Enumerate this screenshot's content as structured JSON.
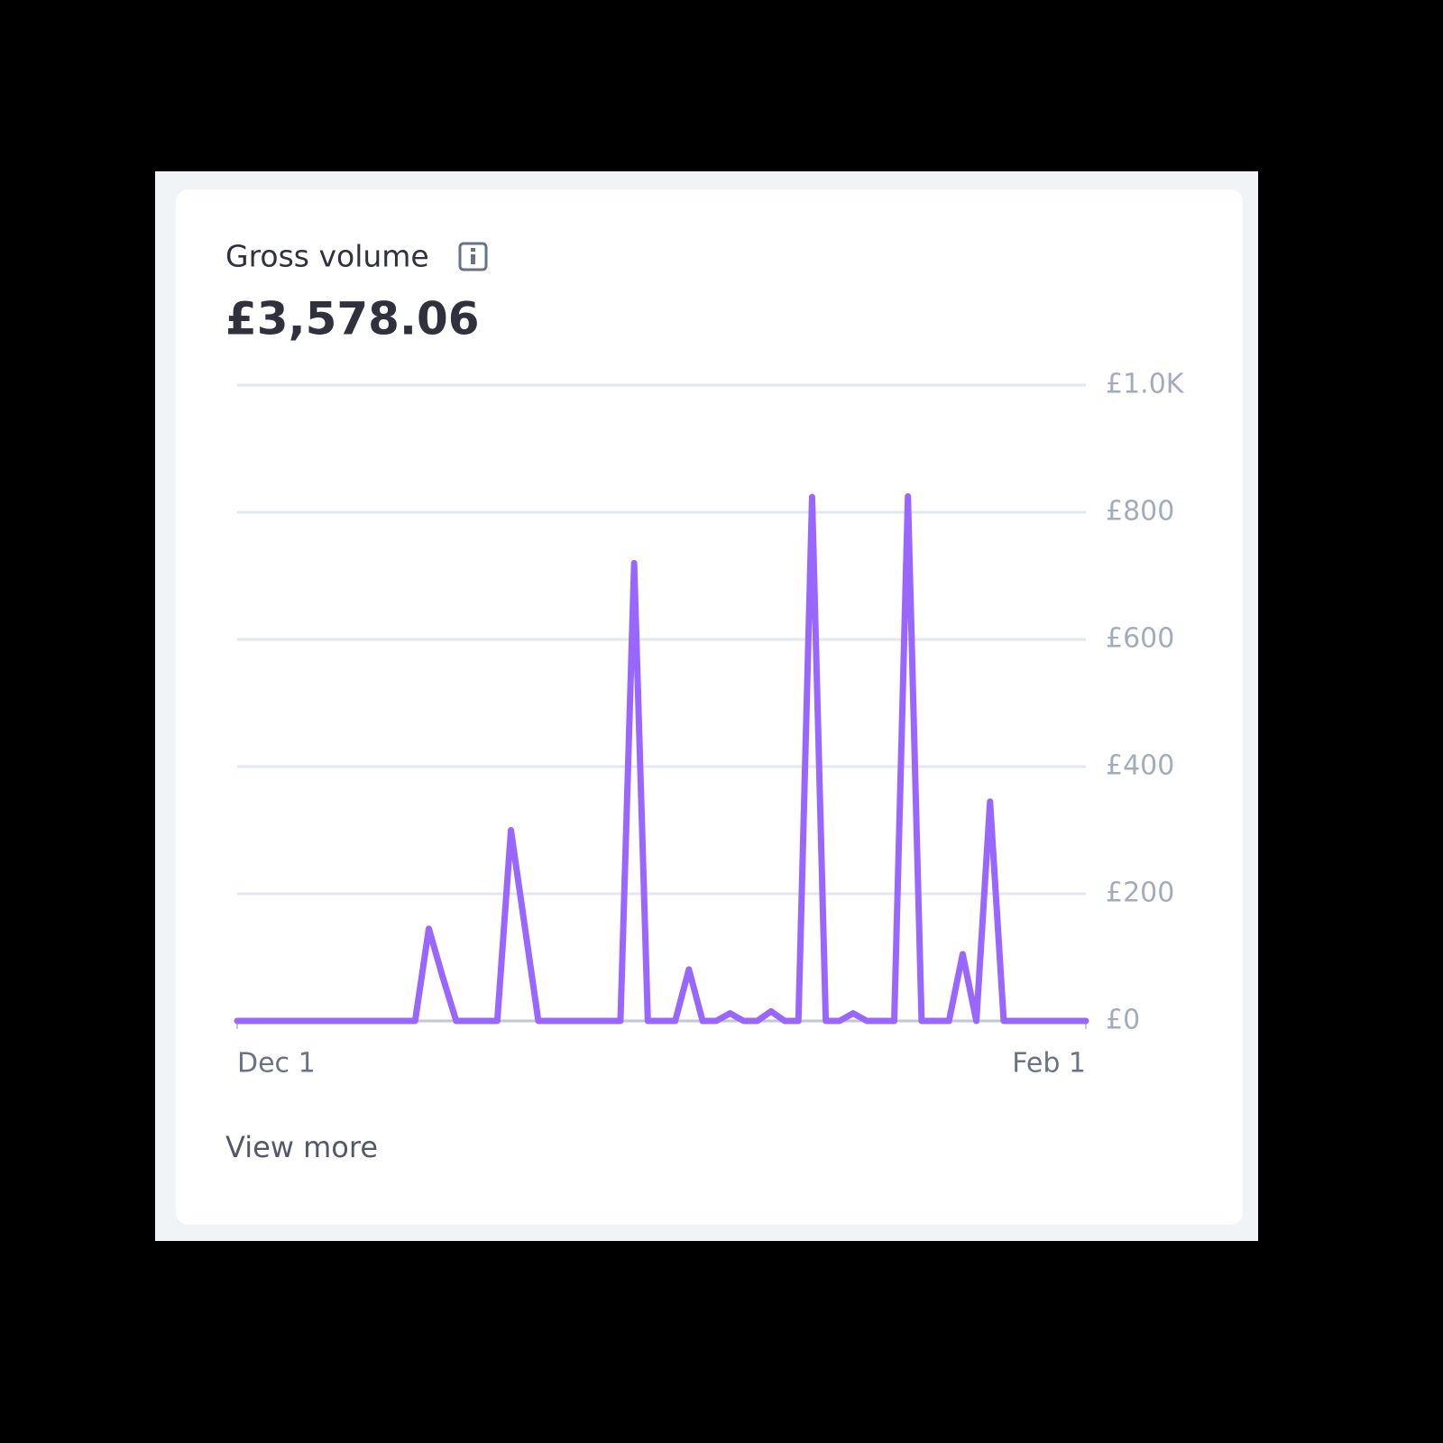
{
  "header": {
    "title": "Gross volume",
    "total": "£3,578.06"
  },
  "chart_data": {
    "type": "line",
    "categories": [
      "Dec 1",
      null,
      null,
      null,
      null,
      null,
      null,
      null,
      null,
      null,
      null,
      null,
      null,
      null,
      null,
      null,
      null,
      null,
      null,
      null,
      null,
      null,
      null,
      null,
      null,
      null,
      null,
      null,
      null,
      null,
      null,
      null,
      null,
      null,
      null,
      null,
      null,
      null,
      null,
      null,
      null,
      null,
      null,
      null,
      null,
      null,
      null,
      null,
      null,
      null,
      null,
      null,
      null,
      null,
      null,
      null,
      null,
      null,
      null,
      null,
      null,
      null,
      "Feb 1"
    ],
    "series": [
      {
        "color": "#9966ff",
        "values": [
          0,
          0,
          0,
          0,
          0,
          0,
          0,
          0,
          0,
          0,
          0,
          0,
          0,
          0,
          145,
          70,
          0,
          0,
          0,
          0,
          300,
          150,
          0,
          0,
          0,
          0,
          0,
          0,
          0,
          720,
          0,
          0,
          0,
          81,
          0,
          0,
          12,
          0,
          0,
          15,
          0,
          0,
          824,
          0,
          0,
          12,
          0,
          0,
          0,
          825,
          0,
          0,
          0,
          105,
          0,
          345,
          0,
          0,
          0,
          0,
          0,
          0,
          0
        ]
      }
    ],
    "ylim": [
      0,
      1000
    ],
    "yticks": [
      {
        "value": 0,
        "label": "£0"
      },
      {
        "value": 200,
        "label": "£200"
      },
      {
        "value": 400,
        "label": "£400"
      },
      {
        "value": 600,
        "label": "£600"
      },
      {
        "value": 800,
        "label": "£800"
      },
      {
        "value": 1000,
        "label": "£1.0K"
      }
    ],
    "grid": true
  },
  "footer": {
    "link": "View more"
  }
}
